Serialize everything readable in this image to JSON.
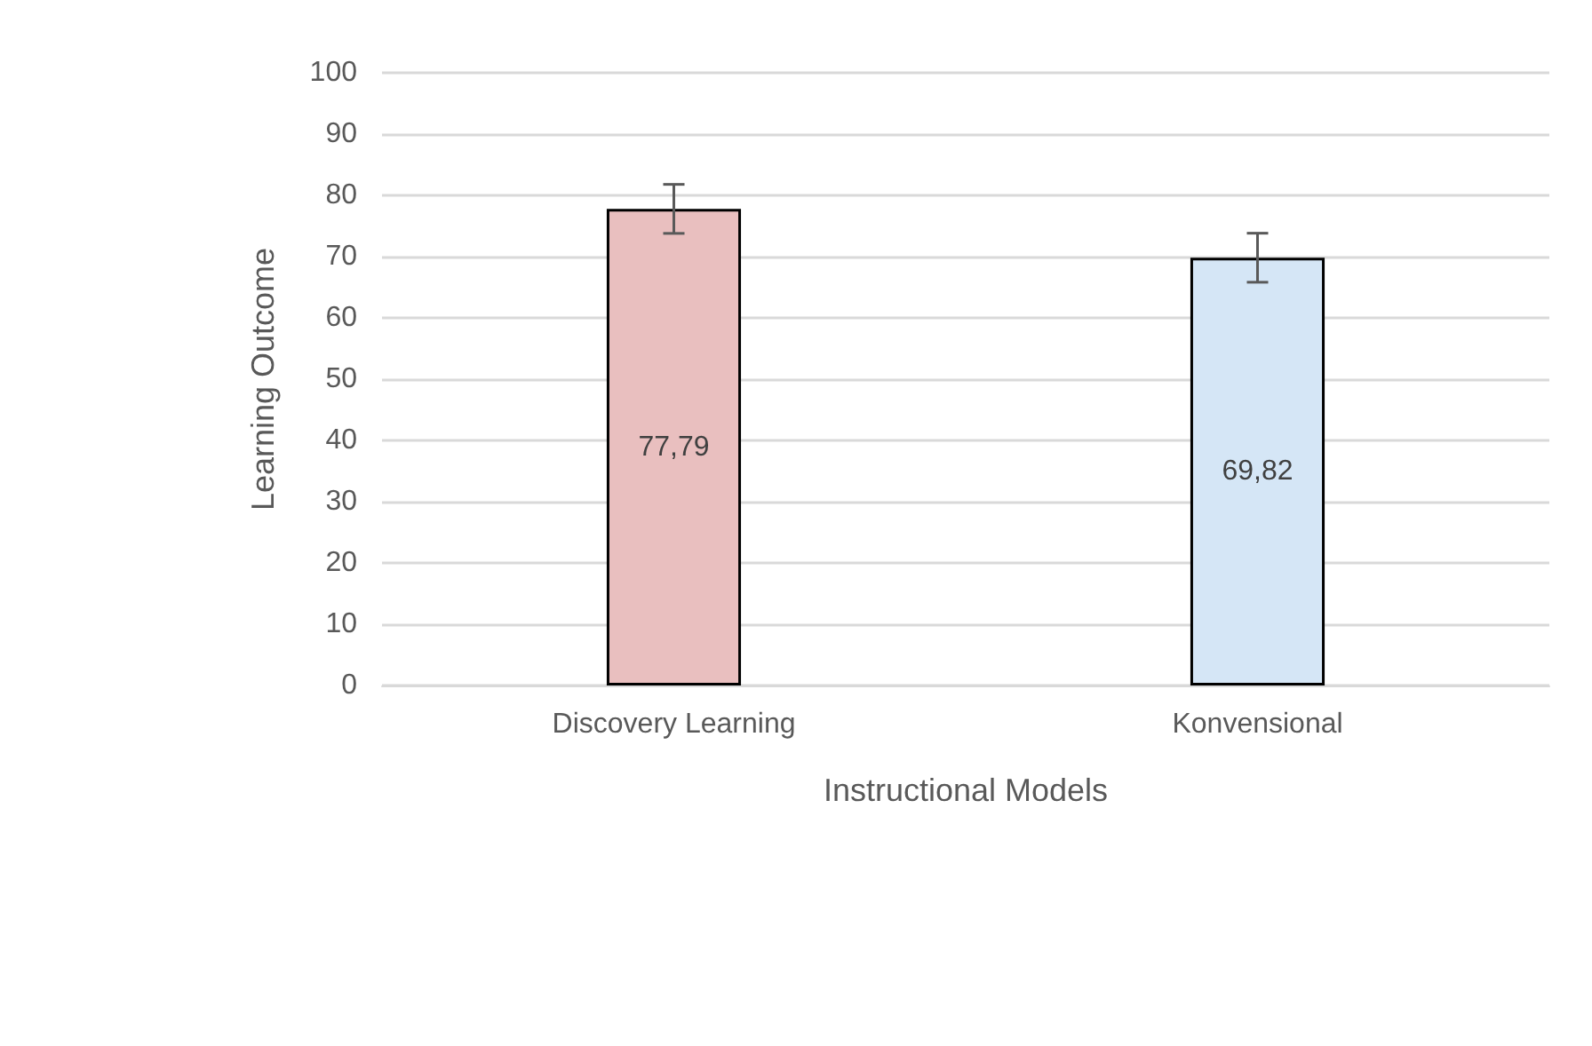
{
  "chart_data": {
    "type": "bar",
    "xlabel": "Instructional Models",
    "ylabel": "Learning Outcome",
    "categories": [
      "Discovery Learning",
      "Konvensional"
    ],
    "values": [
      77.79,
      69.82
    ],
    "colors": [
      "#e9bfbf",
      "#d5e6f6"
    ],
    "errors": [
      4,
      4
    ],
    "value_labels": [
      "77,79",
      "69,82"
    ],
    "ylim": [
      0,
      100
    ],
    "yticks": [
      0,
      10,
      20,
      30,
      40,
      50,
      60,
      70,
      80,
      90,
      100
    ],
    "grid": "y"
  }
}
